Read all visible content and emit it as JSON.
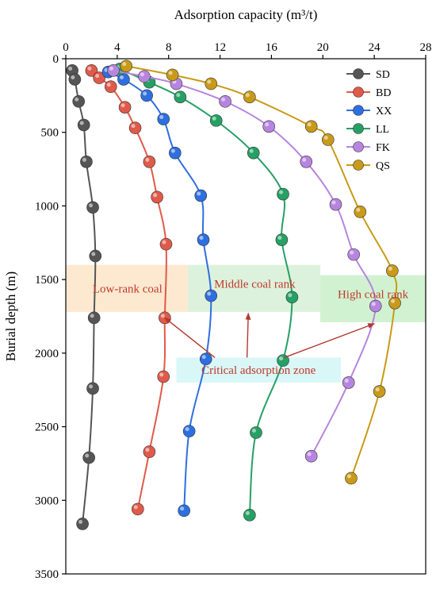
{
  "chart_data": {
    "type": "line",
    "xlabel": "Adsorption capacity (m³/t)",
    "ylabel": "Burial depth (m)",
    "xlim": [
      0,
      28
    ],
    "ylim": [
      0,
      3500
    ],
    "y_reversed": true,
    "x_axis_position": "top",
    "xticks": [
      "0",
      "4",
      "8",
      "12",
      "16",
      "20",
      "24",
      "28"
    ],
    "yticks": [
      "0",
      "500",
      "1000",
      "1500",
      "2000",
      "2500",
      "3000",
      "3500"
    ],
    "legend_position": "top-right",
    "series": [
      {
        "name": "SD",
        "color": "#555555",
        "points": [
          [
            0.5,
            80
          ],
          [
            0.7,
            140
          ],
          [
            1.0,
            290
          ],
          [
            1.4,
            450
          ],
          [
            1.6,
            700
          ],
          [
            2.1,
            1010
          ],
          [
            2.3,
            1340
          ],
          [
            2.2,
            1760
          ],
          [
            2.1,
            2240
          ],
          [
            1.8,
            2710
          ],
          [
            1.3,
            3160
          ]
        ]
      },
      {
        "name": "BD",
        "color": "#e05a4a",
        "points": [
          [
            2.0,
            80
          ],
          [
            2.6,
            130
          ],
          [
            3.5,
            190
          ],
          [
            4.6,
            330
          ],
          [
            5.4,
            470
          ],
          [
            6.5,
            700
          ],
          [
            7.1,
            940
          ],
          [
            7.8,
            1260
          ],
          [
            7.7,
            1760
          ],
          [
            7.6,
            2160
          ],
          [
            6.5,
            2670
          ],
          [
            5.6,
            3060
          ]
        ]
      },
      {
        "name": "XX",
        "color": "#2e6fe0",
        "points": [
          [
            3.3,
            90
          ],
          [
            4.5,
            140
          ],
          [
            6.3,
            250
          ],
          [
            7.6,
            410
          ],
          [
            8.5,
            640
          ],
          [
            10.5,
            930
          ],
          [
            10.7,
            1230
          ],
          [
            11.3,
            1610
          ],
          [
            10.9,
            2040
          ],
          [
            9.6,
            2530
          ],
          [
            9.2,
            3070
          ]
        ]
      },
      {
        "name": "LL",
        "color": "#26a065",
        "points": [
          [
            4.2,
            70
          ],
          [
            6.5,
            160
          ],
          [
            8.9,
            260
          ],
          [
            11.7,
            420
          ],
          [
            14.6,
            640
          ],
          [
            16.9,
            920
          ],
          [
            16.8,
            1230
          ],
          [
            17.6,
            1620
          ],
          [
            16.9,
            2050
          ],
          [
            14.8,
            2540
          ],
          [
            14.3,
            3100
          ]
        ]
      },
      {
        "name": "FK",
        "color": "#b785e0",
        "points": [
          [
            3.7,
            80
          ],
          [
            6.1,
            120
          ],
          [
            8.6,
            170
          ],
          [
            12.4,
            290
          ],
          [
            15.8,
            460
          ],
          [
            18.7,
            700
          ],
          [
            21.0,
            990
          ],
          [
            22.4,
            1330
          ],
          [
            24.1,
            1680
          ],
          [
            22.0,
            2200
          ],
          [
            19.1,
            2700
          ]
        ]
      },
      {
        "name": "QS",
        "color": "#c89a18",
        "points": [
          [
            4.7,
            50
          ],
          [
            8.3,
            110
          ],
          [
            11.3,
            170
          ],
          [
            14.3,
            260
          ],
          [
            19.1,
            460
          ],
          [
            20.4,
            550
          ],
          [
            22.9,
            1040
          ],
          [
            25.4,
            1440
          ],
          [
            25.6,
            1660
          ],
          [
            24.4,
            2260
          ],
          [
            22.2,
            2850
          ]
        ]
      }
    ],
    "zones": [
      {
        "label": "Low-rank coal",
        "color": "#fbe5c8",
        "x_range": [
          0,
          9.5
        ],
        "y_range": [
          1400,
          1720
        ]
      },
      {
        "label": "Middle coal rank",
        "color": "#d7f0d7",
        "x_range": [
          9.5,
          19.8
        ],
        "y_range": [
          1400,
          1720
        ]
      },
      {
        "label": "High coal rank",
        "color": "#c9f0c9",
        "x_range": [
          19.8,
          28
        ],
        "y_range": [
          1470,
          1790
        ]
      }
    ],
    "annotation": {
      "label": "Critical adsorption zone",
      "color": "#d9f7f7",
      "box_x_range": [
        8.6,
        21.4
      ],
      "box_y_range": [
        2030,
        2200
      ],
      "arrows_to": [
        [
          7.7,
          1760
        ],
        [
          14.2,
          1730
        ],
        [
          24.0,
          1800
        ]
      ],
      "arrow_color": "#b03a2e"
    }
  }
}
